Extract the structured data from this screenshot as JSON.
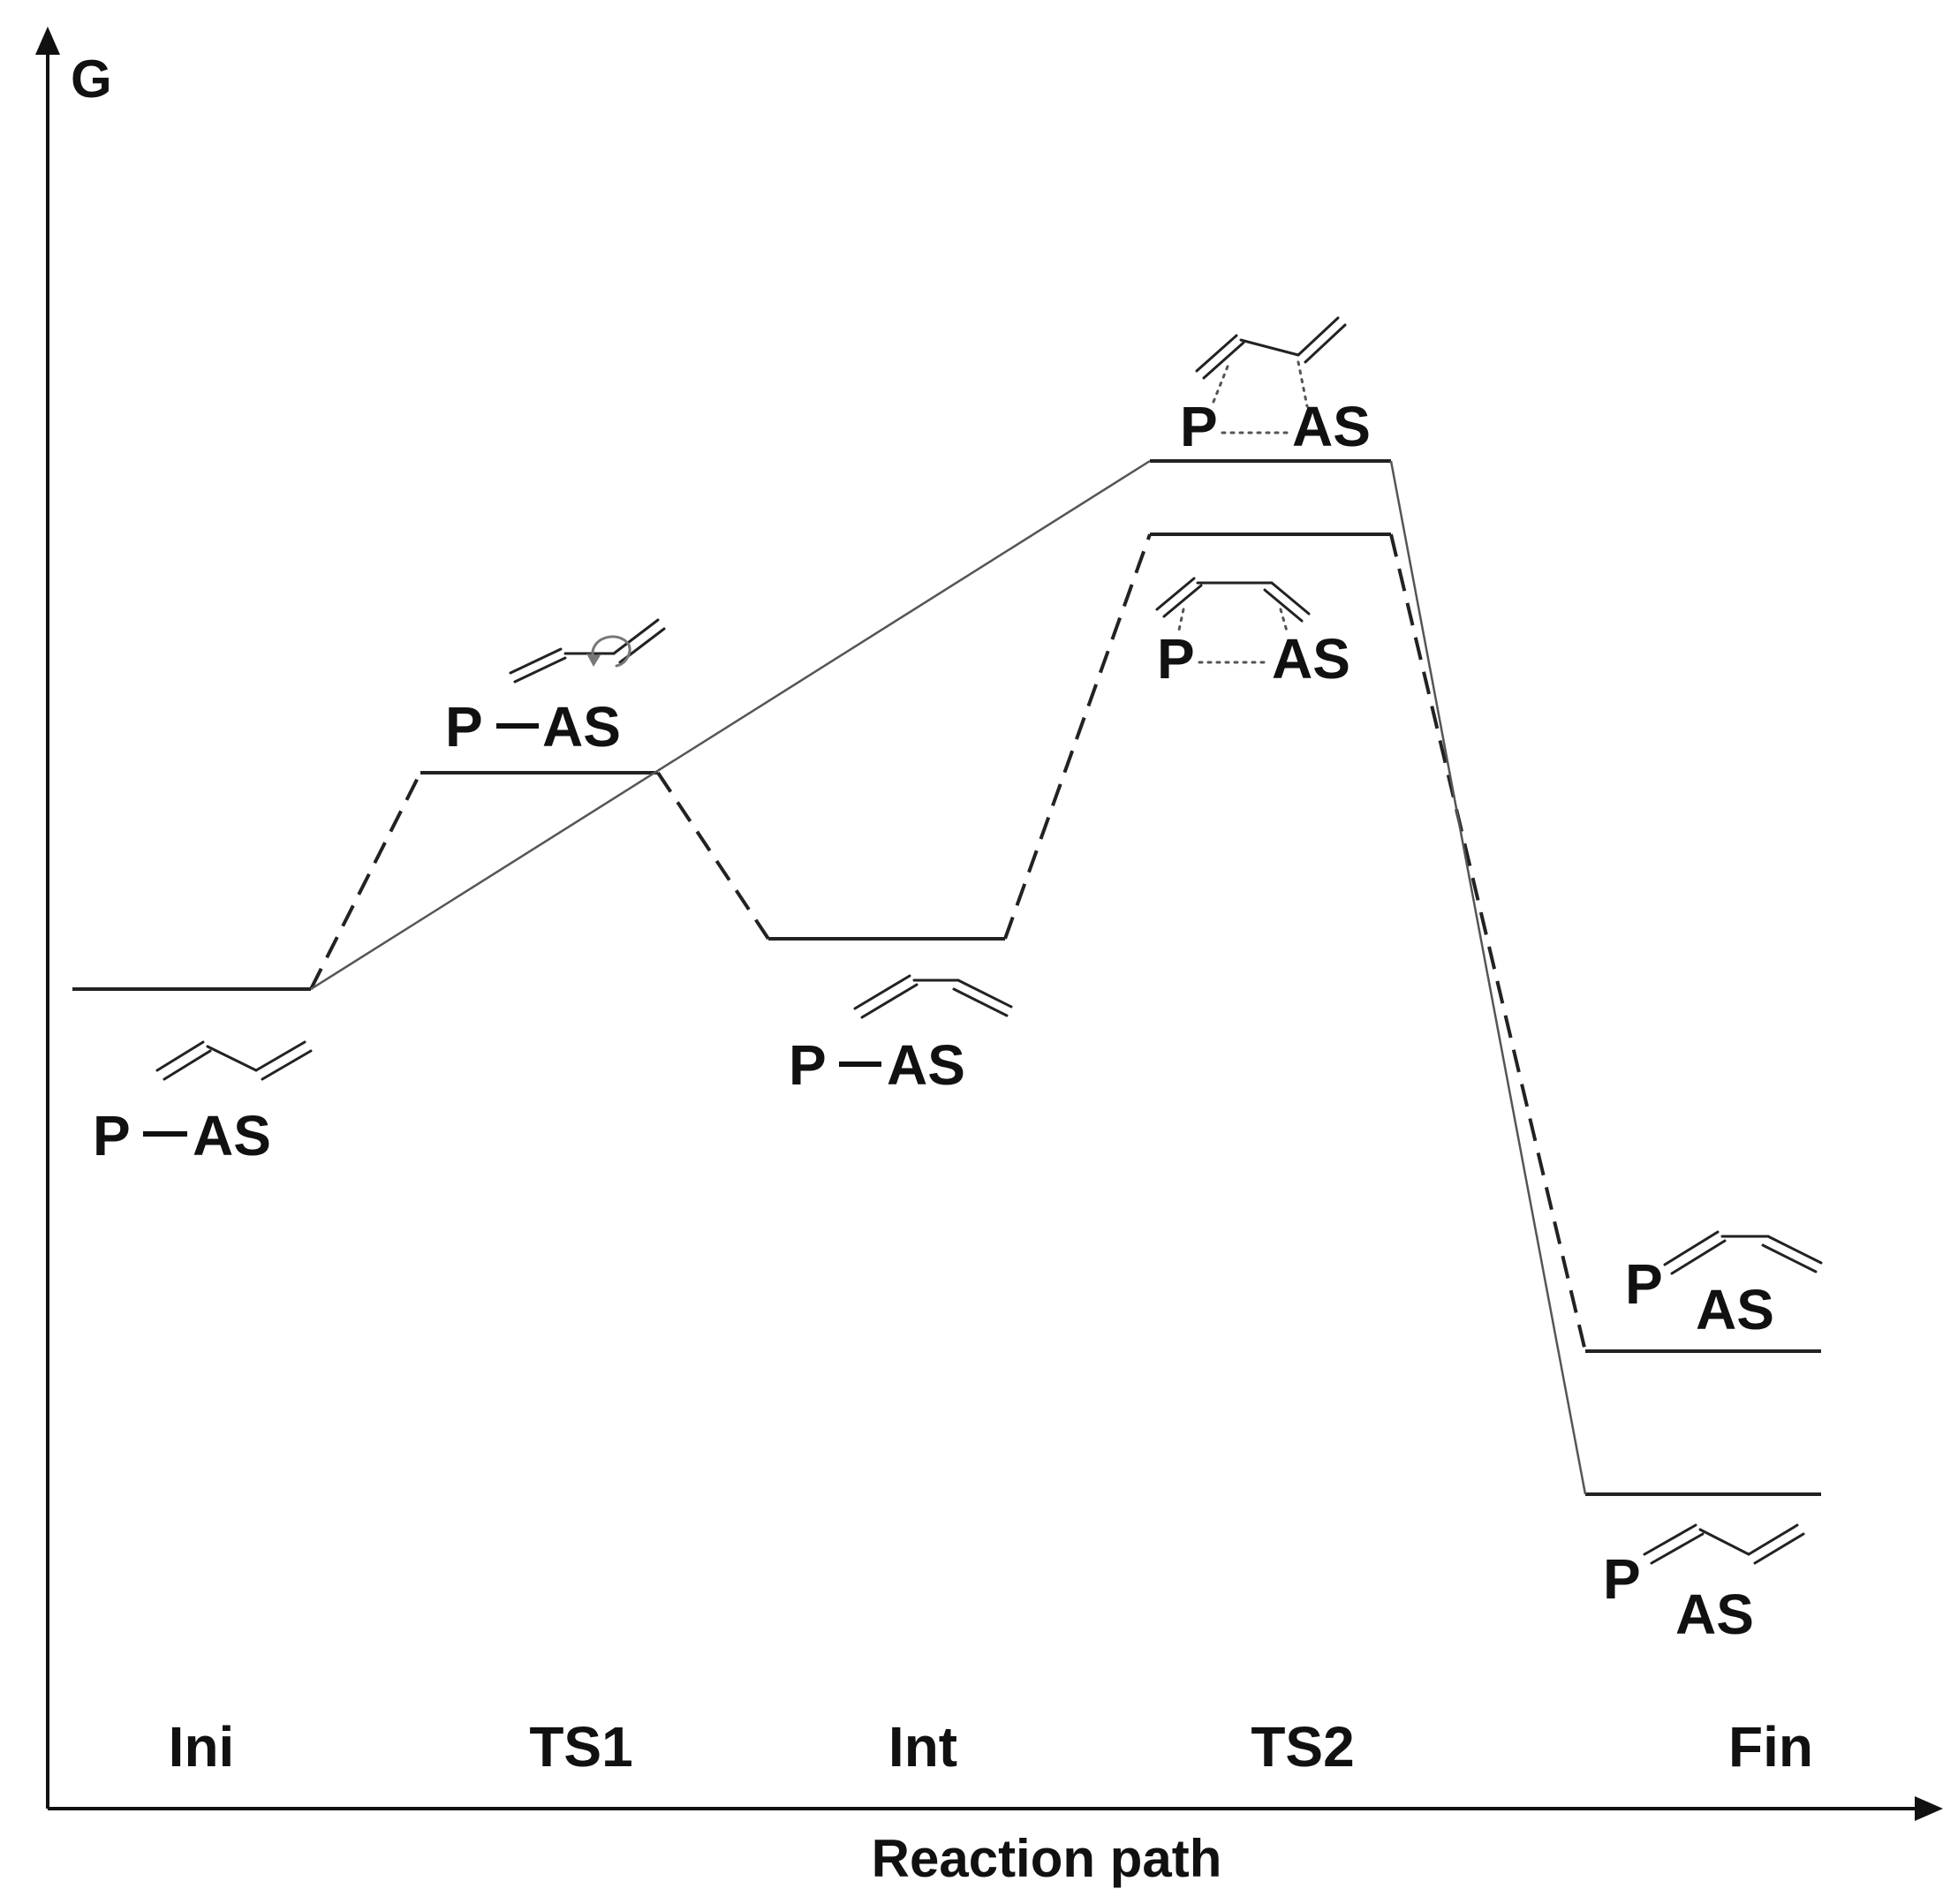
{
  "axes": {
    "y_label": "G",
    "x_label": "Reaction path"
  },
  "stages": {
    "ini": "Ini",
    "ts1": "TS1",
    "int": "Int",
    "ts2": "TS2",
    "fin": "Fin"
  },
  "species": {
    "ini": {
      "p": "P",
      "as": "AS"
    },
    "ts1": {
      "p": "P",
      "as": "AS"
    },
    "int": {
      "p": "P",
      "as": "AS"
    },
    "ts2_upper": {
      "p": "P",
      "as": "AS"
    },
    "ts2_lower": {
      "p": "P",
      "as": "AS"
    },
    "fin_upper": {
      "p": "P",
      "as": "AS"
    },
    "fin_lower": {
      "p": "P",
      "as": "AS"
    }
  }
}
